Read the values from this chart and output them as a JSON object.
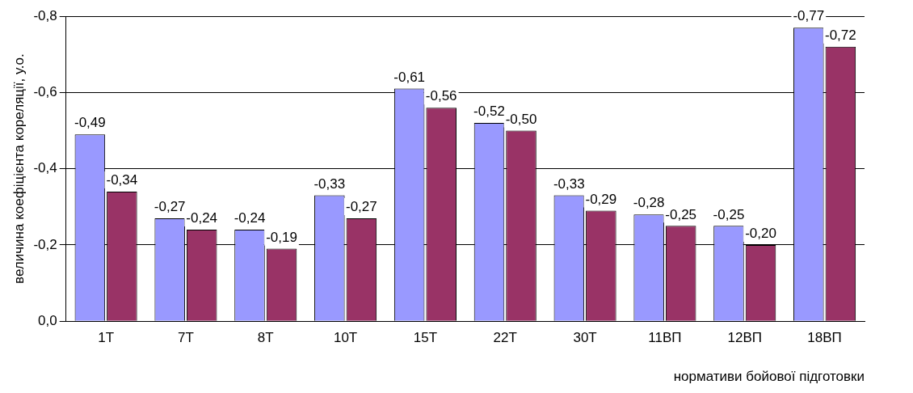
{
  "chart_data": {
    "type": "bar",
    "xlabel": "нормативи бойової підготовки",
    "ylabel": "величина коефіцієнта кореляції, у.о.",
    "categories": [
      "1Т",
      "7Т",
      "8Т",
      "10Т",
      "15Т",
      "22Т",
      "30Т",
      "11ВП",
      "12ВП",
      "18ВП"
    ],
    "series": [
      {
        "color": "#9999ff",
        "values": [
          -0.49,
          -0.27,
          -0.24,
          -0.33,
          -0.61,
          -0.52,
          -0.33,
          -0.28,
          -0.25,
          -0.77
        ],
        "value_labels": [
          "-0,49",
          "-0,27",
          "-0,24",
          "-0,33",
          "-0,61",
          "-0,52",
          "-0,33",
          "-0,28",
          "-0,25",
          "-0,77"
        ]
      },
      {
        "color": "#993366",
        "values": [
          -0.34,
          -0.24,
          -0.19,
          -0.27,
          -0.56,
          -0.5,
          -0.29,
          -0.25,
          -0.2,
          -0.72
        ],
        "value_labels": [
          "-0,34",
          "-0,24",
          "-0,19",
          "-0,27",
          "-0,56",
          "-0,50",
          "-0,29",
          "-0,25",
          "-0,20",
          "-0,72"
        ]
      }
    ],
    "ylim": [
      0,
      -0.8
    ],
    "yticks": [
      {
        "value": 0,
        "label": "0,0"
      },
      {
        "value": -0.2,
        "label": "-0,2"
      },
      {
        "value": -0.4,
        "label": "-0,4"
      },
      {
        "value": -0.6,
        "label": "-0,6"
      },
      {
        "value": -0.8,
        "label": "-0,8"
      }
    ],
    "grid": "y",
    "legend": false
  }
}
